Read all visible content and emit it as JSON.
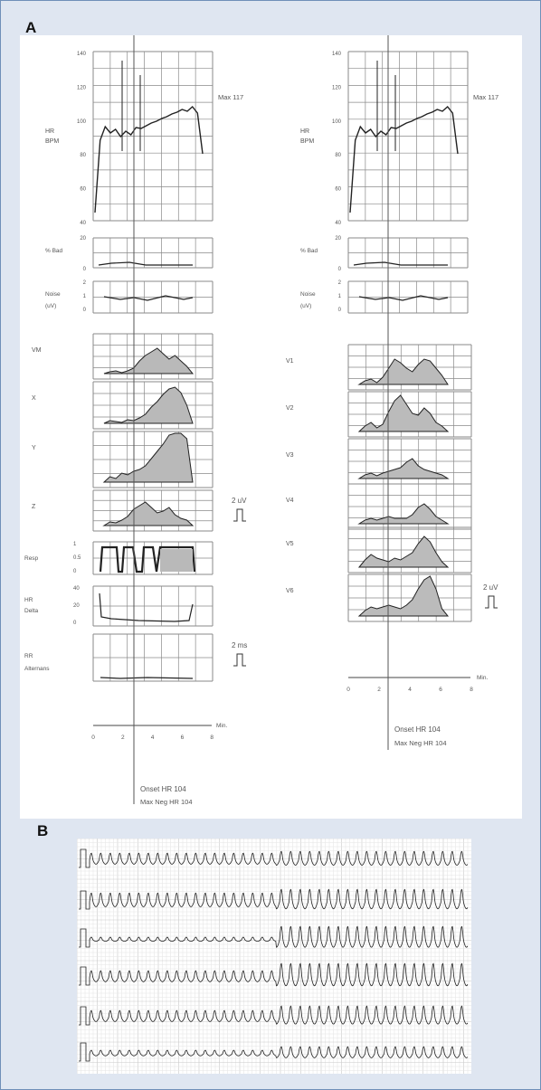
{
  "figure": {
    "panel_a_label": "A",
    "panel_b_label": "B"
  },
  "left_column": {
    "hr_label": [
      "HR",
      "BPM"
    ],
    "hr_ticks": [
      "140",
      "120",
      "100",
      "80",
      "60",
      "40"
    ],
    "max_label": "Max 117",
    "pct_bad_label": "% Bad",
    "pct_bad_ticks": [
      "20",
      "0"
    ],
    "noise_label": [
      "Noise",
      "(uV)"
    ],
    "noise_ticks": [
      "2",
      "1",
      "0"
    ],
    "leads": [
      "VM",
      "X",
      "Y",
      "Z"
    ],
    "scale_bar_label": "2 uV",
    "resp_label": "Resp",
    "resp_ticks": [
      "1",
      "0.5",
      "0"
    ],
    "hr_delta_label": [
      "HR",
      "Delta"
    ],
    "hr_delta_ticks": [
      "40",
      "20",
      "0"
    ],
    "rr_label": [
      "RR",
      "Alternans"
    ],
    "rr_scale_label": "2 ms",
    "time_axis_label": "Min.",
    "time_ticks": [
      "0",
      "2",
      "4",
      "6",
      "8"
    ],
    "onset_label": "Onset HR 104",
    "max_neg_label": "Max Neg HR 104"
  },
  "right_column": {
    "hr_label": [
      "HR",
      "BPM"
    ],
    "hr_ticks": [
      "140",
      "120",
      "100",
      "80",
      "60",
      "40"
    ],
    "max_label": "Max 117",
    "pct_bad_label": "% Bad",
    "pct_bad_ticks": [
      "20",
      "0"
    ],
    "noise_label": [
      "Noise",
      "(uV)"
    ],
    "noise_ticks": [
      "2",
      "1",
      "0"
    ],
    "leads": [
      "V1",
      "V2",
      "V3",
      "V4",
      "V5",
      "V6"
    ],
    "scale_bar_label": "2 uV",
    "time_axis_label": "Min.",
    "time_ticks": [
      "0",
      "2",
      "4",
      "6",
      "8"
    ],
    "onset_label": "Onset HR 104",
    "max_neg_label": "Max Neg HR 104"
  }
}
